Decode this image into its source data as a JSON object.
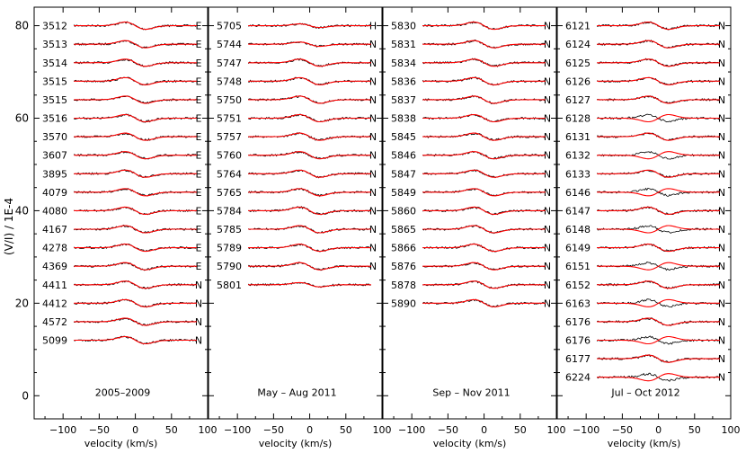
{
  "chart_data": {
    "type": "line",
    "ylabel": "(V/I) / 1E-4",
    "xlabel": "velocity (km/s)",
    "ylim": [
      -5,
      84
    ],
    "xlim": [
      -140,
      100
    ],
    "y_ticks": [
      0,
      20,
      40,
      60,
      80
    ],
    "x_ticks": [
      -100,
      -50,
      0,
      50,
      100
    ],
    "x_tick_labels": [
      "−100",
      "−50",
      "0",
      "50",
      "100"
    ],
    "series_colors": {
      "observed": "#000000",
      "model": "#ff0000"
    },
    "panels": [
      {
        "title": "2005–2009",
        "spectra": [
          {
            "id": "3512",
            "flag": "E",
            "offset": 80,
            "amp": 1.0
          },
          {
            "id": "3513",
            "flag": "E",
            "offset": 76,
            "amp": 1.0
          },
          {
            "id": "3514",
            "flag": "E",
            "offset": 72,
            "amp": 1.0
          },
          {
            "id": "3515",
            "flag": "E",
            "offset": 68,
            "amp": 1.0
          },
          {
            "id": "3515",
            "flag": "E",
            "offset": 64,
            "amp": 1.0
          },
          {
            "id": "3516",
            "flag": "E",
            "offset": 60,
            "amp": 1.0
          },
          {
            "id": "3570",
            "flag": "E",
            "offset": 56,
            "amp": 1.0
          },
          {
            "id": "3607",
            "flag": "E",
            "offset": 52,
            "amp": 1.0
          },
          {
            "id": "3895",
            "flag": "E",
            "offset": 48,
            "amp": 1.0
          },
          {
            "id": "4079",
            "flag": "E",
            "offset": 44,
            "amp": 1.0
          },
          {
            "id": "4080",
            "flag": "E",
            "offset": 40,
            "amp": 1.0
          },
          {
            "id": "4167",
            "flag": "E",
            "offset": 36,
            "amp": 1.0
          },
          {
            "id": "4278",
            "flag": "E",
            "offset": 32,
            "amp": 1.0
          },
          {
            "id": "4369",
            "flag": "E",
            "offset": 28,
            "amp": 1.0
          },
          {
            "id": "4411",
            "flag": "N",
            "offset": 24,
            "amp": 1.0
          },
          {
            "id": "4412",
            "flag": "N",
            "offset": 20,
            "amp": 1.0
          },
          {
            "id": "4572",
            "flag": "N",
            "offset": 16,
            "amp": 1.0
          },
          {
            "id": "5099",
            "flag": "N",
            "offset": 12,
            "amp": 1.0
          }
        ]
      },
      {
        "title": "May – Aug 2011",
        "spectra": [
          {
            "id": "5705",
            "flag": "H",
            "offset": 80,
            "amp": 0.5
          },
          {
            "id": "5744",
            "flag": "N",
            "offset": 76,
            "amp": 0.6
          },
          {
            "id": "5747",
            "flag": "N",
            "offset": 72,
            "amp": 1.0
          },
          {
            "id": "5748",
            "flag": "N",
            "offset": 68,
            "amp": 1.0
          },
          {
            "id": "5750",
            "flag": "N",
            "offset": 64,
            "amp": 1.0
          },
          {
            "id": "5751",
            "flag": "N",
            "offset": 60,
            "amp": 1.0
          },
          {
            "id": "5757",
            "flag": "N",
            "offset": 56,
            "amp": 1.0
          },
          {
            "id": "5760",
            "flag": "N",
            "offset": 52,
            "amp": 1.0
          },
          {
            "id": "5764",
            "flag": "N",
            "offset": 48,
            "amp": 1.0
          },
          {
            "id": "5765",
            "flag": "N",
            "offset": 44,
            "amp": 1.0
          },
          {
            "id": "5784",
            "flag": "N",
            "offset": 40,
            "amp": 1.0
          },
          {
            "id": "5785",
            "flag": "N",
            "offset": 36,
            "amp": 1.0
          },
          {
            "id": "5789",
            "flag": "N",
            "offset": 32,
            "amp": 1.0
          },
          {
            "id": "5790",
            "flag": "N",
            "offset": 28,
            "amp": 1.0
          },
          {
            "id": "5801",
            "flag": "",
            "offset": 24,
            "amp": 0.6
          }
        ]
      },
      {
        "title": "Sep – Nov 2011",
        "spectra": [
          {
            "id": "5830",
            "flag": "N",
            "offset": 80,
            "amp": 1.0
          },
          {
            "id": "5831",
            "flag": "N",
            "offset": 76,
            "amp": 1.0
          },
          {
            "id": "5834",
            "flag": "N",
            "offset": 72,
            "amp": 1.0
          },
          {
            "id": "5836",
            "flag": "N",
            "offset": 68,
            "amp": 1.0
          },
          {
            "id": "5837",
            "flag": "N",
            "offset": 64,
            "amp": 1.0
          },
          {
            "id": "5838",
            "flag": "N",
            "offset": 60,
            "amp": 1.0
          },
          {
            "id": "5845",
            "flag": "N",
            "offset": 56,
            "amp": 1.0
          },
          {
            "id": "5846",
            "flag": "N",
            "offset": 52,
            "amp": 1.0
          },
          {
            "id": "5847",
            "flag": "N",
            "offset": 48,
            "amp": 1.0
          },
          {
            "id": "5849",
            "flag": "N",
            "offset": 44,
            "amp": 1.0
          },
          {
            "id": "5860",
            "flag": "N",
            "offset": 40,
            "amp": 1.0
          },
          {
            "id": "5865",
            "flag": "N",
            "offset": 36,
            "amp": 1.0
          },
          {
            "id": "5866",
            "flag": "N",
            "offset": 32,
            "amp": 1.0
          },
          {
            "id": "5876",
            "flag": "N",
            "offset": 28,
            "amp": 1.0
          },
          {
            "id": "5878",
            "flag": "N",
            "offset": 24,
            "amp": 1.0
          },
          {
            "id": "5890",
            "flag": "N",
            "offset": 20,
            "amp": 1.0
          }
        ]
      },
      {
        "title": "Jul – Oct 2012",
        "spectra": [
          {
            "id": "6121",
            "flag": "N",
            "offset": 80,
            "amp": 1.0
          },
          {
            "id": "6124",
            "flag": "N",
            "offset": 76,
            "amp": 1.0
          },
          {
            "id": "6125",
            "flag": "N",
            "offset": 72,
            "amp": 1.0
          },
          {
            "id": "6126",
            "flag": "N",
            "offset": 68,
            "amp": 1.0
          },
          {
            "id": "6127",
            "flag": "N",
            "offset": 64,
            "amp": 1.0
          },
          {
            "id": "6128",
            "flag": "N",
            "offset": 60,
            "amp": 1.0
          },
          {
            "id": "6131",
            "flag": "N",
            "offset": 56,
            "amp": 1.0
          },
          {
            "id": "6132",
            "flag": "N",
            "offset": 52,
            "amp": 1.0
          },
          {
            "id": "6133",
            "flag": "N",
            "offset": 48,
            "amp": 1.0
          },
          {
            "id": "6146",
            "flag": "N",
            "offset": 44,
            "amp": 1.0
          },
          {
            "id": "6147",
            "flag": "N",
            "offset": 40,
            "amp": 1.0
          },
          {
            "id": "6148",
            "flag": "N",
            "offset": 36,
            "amp": 1.0
          },
          {
            "id": "6149",
            "flag": "N",
            "offset": 32,
            "amp": 1.0
          },
          {
            "id": "6151",
            "flag": "N",
            "offset": 28,
            "amp": 1.0
          },
          {
            "id": "6152",
            "flag": "N",
            "offset": 24,
            "amp": 1.0
          },
          {
            "id": "6163",
            "flag": "N",
            "offset": 20,
            "amp": 1.0
          },
          {
            "id": "6176",
            "flag": "N",
            "offset": 16,
            "amp": 1.0
          },
          {
            "id": "6176",
            "flag": "N",
            "offset": 12,
            "amp": 1.0
          },
          {
            "id": "6177",
            "flag": "N",
            "offset": 8,
            "amp": 1.0
          },
          {
            "id": "6224",
            "flag": "N",
            "offset": 4,
            "amp": 1.0
          }
        ]
      }
    ]
  }
}
